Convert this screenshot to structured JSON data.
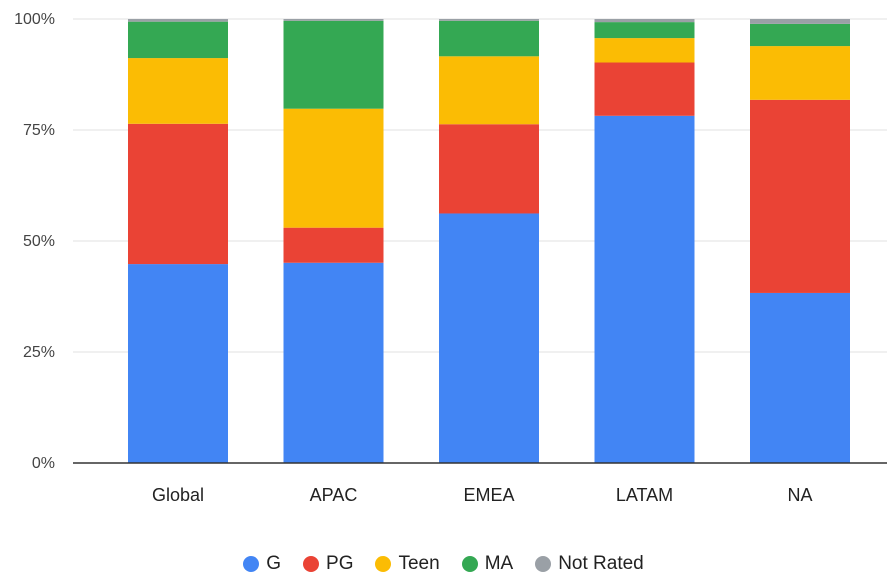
{
  "chart_data": {
    "type": "bar",
    "stacked": true,
    "normalized": true,
    "categories": [
      "Global",
      "APAC",
      "EMEA",
      "LATAM",
      "NA"
    ],
    "series": [
      {
        "name": "G",
        "color": "#4285F4",
        "values": [
          44.8,
          45.1,
          56.2,
          78.2,
          38.3
        ]
      },
      {
        "name": "PG",
        "color": "#EA4335",
        "values": [
          31.6,
          7.9,
          20.1,
          12.0,
          43.5
        ]
      },
      {
        "name": "Teen",
        "color": "#FBBC04",
        "values": [
          14.8,
          26.8,
          15.3,
          5.5,
          12.1
        ]
      },
      {
        "name": "MA",
        "color": "#34A853",
        "values": [
          8.2,
          19.8,
          8.0,
          3.6,
          5.0
        ]
      },
      {
        "name": "Not Rated",
        "color": "#9AA0A6",
        "values": [
          0.6,
          0.4,
          0.4,
          0.7,
          1.1
        ]
      }
    ],
    "yticks": [
      "0%",
      "25%",
      "50%",
      "75%",
      "100%"
    ],
    "ylim": [
      0,
      100
    ],
    "grid": true,
    "legend_position": "bottom"
  }
}
